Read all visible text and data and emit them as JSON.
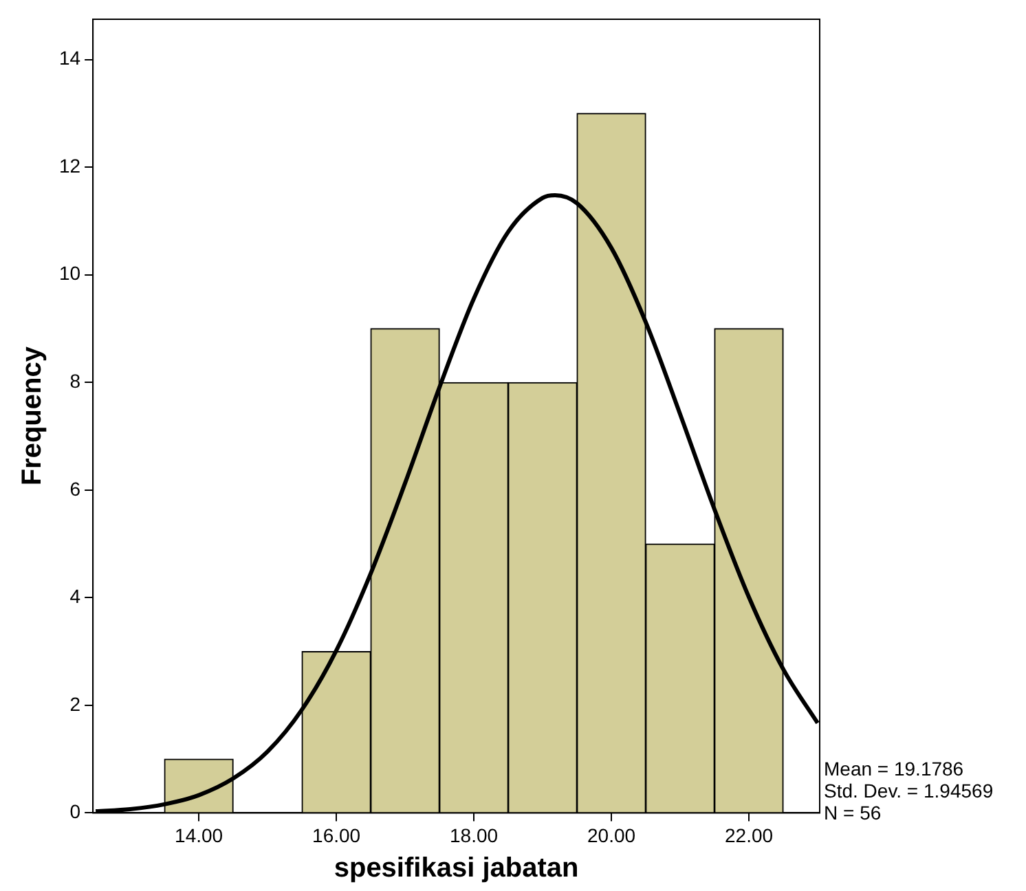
{
  "chart_data": {
    "type": "histogram",
    "xlabel": "spesifikasi jabatan",
    "ylabel": "Frequency",
    "bins": [
      13.5,
      14.5,
      15.5,
      16.5,
      17.5,
      18.5,
      19.5,
      20.5,
      21.5,
      22.5
    ],
    "values": [
      1,
      0,
      3,
      9,
      8,
      8,
      13,
      5,
      9
    ],
    "color": "#d3ce98",
    "series": [
      {
        "type": "line",
        "color": "#000000",
        "x": [
          12.5,
          13,
          13.5,
          14,
          14.5,
          15,
          15.5,
          16,
          16.5,
          17,
          17.5,
          18,
          18.5,
          19,
          19.18,
          19.5,
          20,
          20.5,
          21,
          21.5,
          22,
          22.5,
          23
        ],
        "values": [
          0.03,
          0.07,
          0.16,
          0.33,
          0.64,
          1.14,
          1.92,
          3.02,
          4.45,
          6.13,
          7.91,
          9.56,
          10.8,
          11.43,
          11.48,
          11.33,
          10.5,
          9.12,
          7.41,
          5.64,
          4.01,
          2.67,
          1.67
        ]
      }
    ],
    "xlim": [
      12.46,
      23.03
    ],
    "ylim": [
      0,
      14.75
    ],
    "xticks": [
      {
        "value": 14,
        "label": "14.00"
      },
      {
        "value": 16,
        "label": "16.00"
      },
      {
        "value": 18,
        "label": "18.00"
      },
      {
        "value": 20,
        "label": "20.00"
      },
      {
        "value": 22,
        "label": "22.00"
      }
    ],
    "yticks": [
      0,
      2,
      4,
      6,
      8,
      10,
      12,
      14
    ],
    "grid": false,
    "legend": false,
    "marker": "none",
    "annotations": [
      "Mean = 19.1786",
      "Std. Dev. = 1.94569",
      "N = 56"
    ]
  }
}
